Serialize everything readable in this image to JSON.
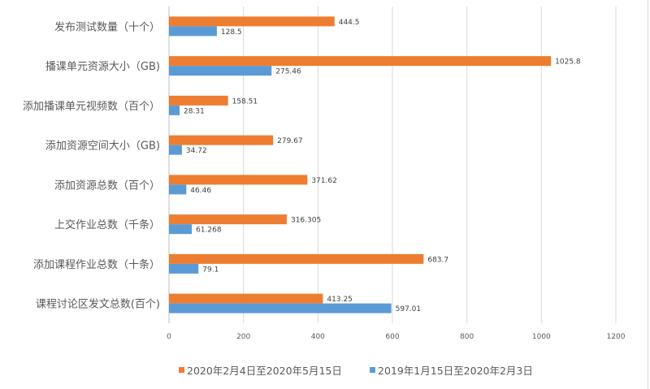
{
  "chart_data": {
    "type": "bar",
    "orientation": "horizontal",
    "categories": [
      "发布测试数量（十个）",
      "播课单元资源大小（GB)",
      "添加播课单元视频数（百个）",
      "添加资源空间大小（GB)",
      "添加资源总数（百个）",
      "上交作业总数（千条）",
      "添加课程作业总数（十条）",
      "课程讨论区发文总数(百个)"
    ],
    "series": [
      {
        "name": "2020年2月4日至2020年5月15日",
        "color": "#ED7D31",
        "values": [
          444.5,
          1025.8,
          158.51,
          279.67,
          371.62,
          316.305,
          683.7,
          413.25
        ],
        "labels": [
          "444.5",
          "1025.8",
          "158.51",
          "279.67",
          "371.62",
          "316.305",
          "683.7",
          "413.25"
        ]
      },
      {
        "name": "2019年1月15日至2020年2月3日",
        "color": "#5B9BD5",
        "values": [
          128.5,
          275.46,
          28.31,
          34.72,
          46.46,
          61.268,
          79.1,
          597.01
        ],
        "labels": [
          "128.5",
          "275.46",
          "28.31",
          "34.72",
          "46.46",
          "61.268",
          "79.1",
          "597.01"
        ]
      }
    ],
    "xlim": [
      0,
      1200
    ],
    "xticks": [
      "0",
      "200",
      "400",
      "600",
      "800",
      "1000",
      "1200"
    ],
    "grid": true,
    "legend_position": "bottom",
    "title": "",
    "xlabel": "",
    "ylabel": ""
  }
}
